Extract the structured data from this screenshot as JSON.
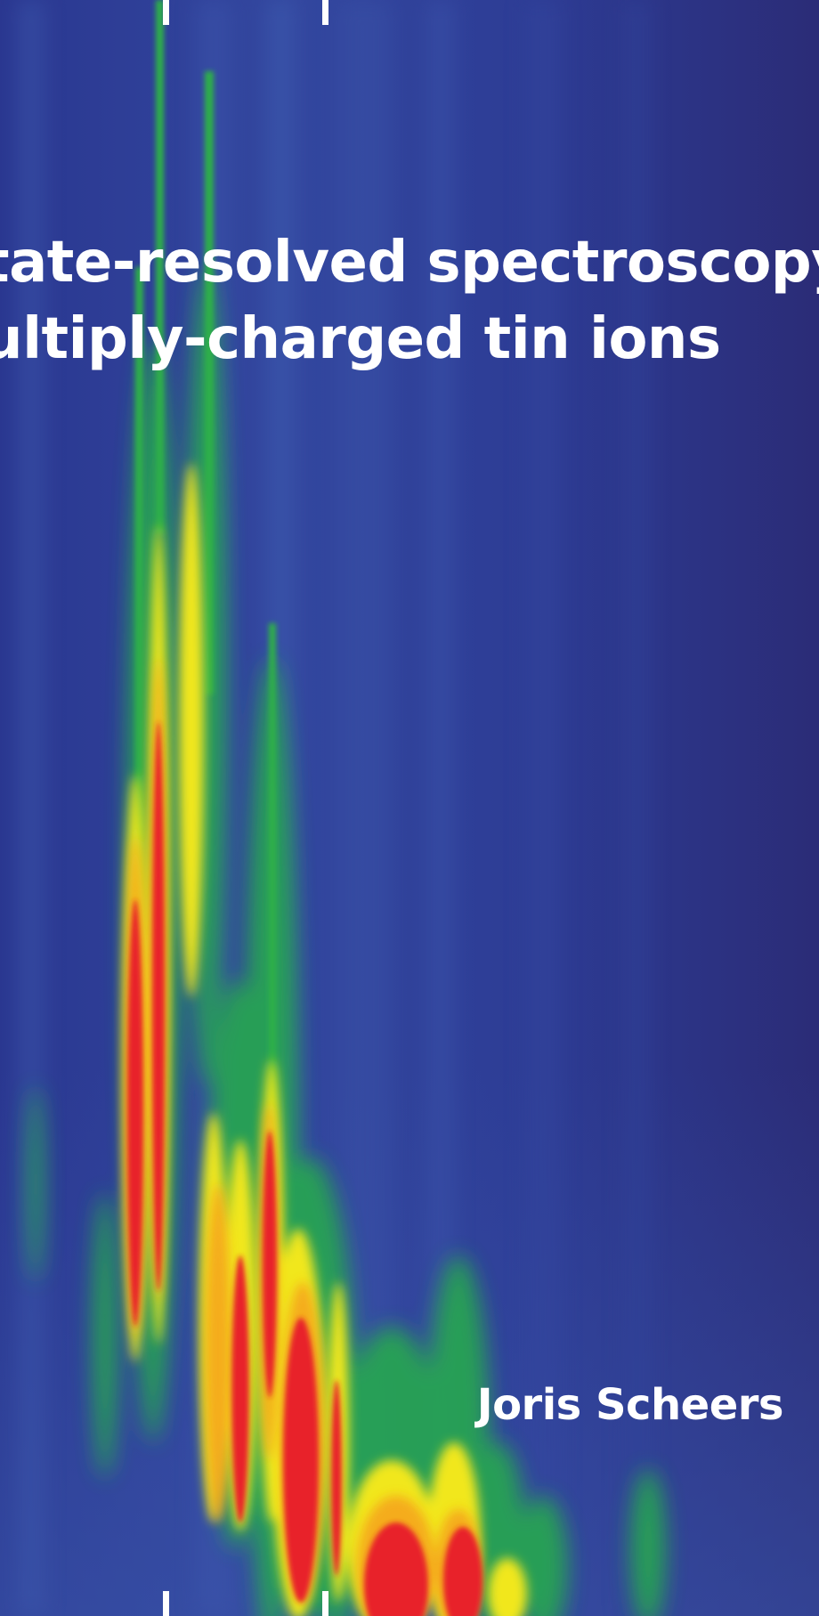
{
  "cover": {
    "title_lines": [
      "tate-resolved spectroscopy",
      "ultiply-charged tin ions"
    ],
    "author": "Joris Scheers",
    "background_artwork": "spectroscopy-heatmap",
    "colors": {
      "background_blue": "#2d3b93",
      "green": "#2fb04a",
      "yellow": "#f1e71c",
      "red": "#e8232a",
      "text": "#ffffff"
    }
  }
}
